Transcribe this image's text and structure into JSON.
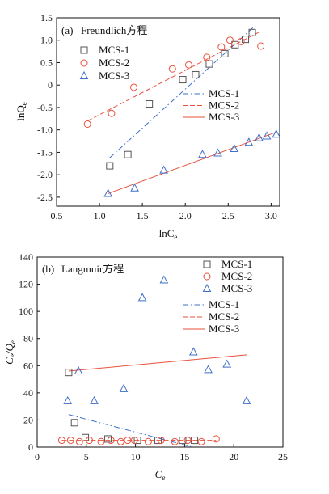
{
  "chart_data": [
    {
      "type": "scatter",
      "panel_label": "(a)",
      "title": "Freundlich方程",
      "xlabel": "lnC",
      "xlabel_sub": "e",
      "ylabel": "lnQ",
      "ylabel_sub": "e",
      "xlim": [
        0.5,
        3.1
      ],
      "ylim": [
        -2.7,
        1.5
      ],
      "xticks": [
        0.5,
        1.0,
        1.5,
        2.0,
        2.5,
        3.0
      ],
      "xtick_labels": [
        "0.5",
        "1.0",
        "1.5",
        "2.0",
        "2.5",
        "3.0"
      ],
      "yticks": [
        -2.5,
        -2.0,
        -1.5,
        -1.0,
        -0.5,
        0,
        0.5,
        1.0,
        1.5
      ],
      "ytick_labels": [
        "-2.5",
        "-2.0",
        "-1.5",
        "-1.0",
        "-0.5",
        "0",
        "0.5",
        "1.0",
        "1.5"
      ],
      "scatter_legend": [
        {
          "label": "MCS-1",
          "marker": "square",
          "color": "#555555"
        },
        {
          "label": "MCS-2",
          "marker": "circle",
          "color": "#e8503a"
        },
        {
          "label": "MCS-3",
          "marker": "triangle",
          "color": "#3f6fc8"
        }
      ],
      "line_legend": [
        {
          "label": "MCS-1",
          "dash": "dashdot",
          "color": "#3f6fc8"
        },
        {
          "label": "MCS-2",
          "dash": "dashed",
          "color": "#e8503a"
        },
        {
          "label": "MCS-3",
          "dash": "solid",
          "color": "#e8503a"
        }
      ],
      "series": [
        {
          "label": "MCS-1",
          "marker": "square",
          "color": "#555555",
          "x": [
            1.12,
            1.33,
            1.58,
            1.97,
            2.12,
            2.28,
            2.46,
            2.58,
            2.7,
            2.78
          ],
          "y": [
            -1.8,
            -1.55,
            -0.42,
            0.12,
            0.23,
            0.47,
            0.7,
            0.9,
            1.02,
            1.17
          ]
        },
        {
          "label": "MCS-2",
          "marker": "circle",
          "color": "#e8503a",
          "x": [
            0.86,
            1.14,
            1.4,
            1.85,
            2.04,
            2.25,
            2.42,
            2.52,
            2.65,
            2.88
          ],
          "y": [
            -0.87,
            -0.63,
            -0.05,
            0.36,
            0.45,
            0.62,
            0.85,
            1.0,
            0.97,
            0.87
          ]
        },
        {
          "label": "MCS-3",
          "marker": "triangle",
          "color": "#3f6fc8",
          "x": [
            1.1,
            1.41,
            1.75,
            2.2,
            2.38,
            2.57,
            2.74,
            2.86,
            2.95,
            3.06
          ],
          "y": [
            -2.42,
            -2.3,
            -1.9,
            -1.55,
            -1.52,
            -1.42,
            -1.28,
            -1.18,
            -1.14,
            -1.1
          ]
        }
      ],
      "fit_lines": [
        {
          "label": "MCS-1",
          "dash": "dashdot",
          "color": "#3f6fc8",
          "x": [
            1.12,
            2.8
          ],
          "y": [
            -1.62,
            1.3
          ]
        },
        {
          "label": "MCS-2",
          "dash": "dashed",
          "color": "#e8503a",
          "x": [
            0.86,
            2.88
          ],
          "y": [
            -0.8,
            1.2
          ]
        },
        {
          "label": "MCS-3",
          "dash": "solid",
          "color": "#e8503a",
          "x": [
            1.1,
            3.06
          ],
          "y": [
            -2.42,
            -1.05
          ]
        }
      ]
    },
    {
      "type": "scatter",
      "panel_label": "(b)",
      "title": "Langmuir方程",
      "xlabel": "C",
      "xlabel_sub": "e",
      "ylabel": "C",
      "ylabel_sub": "e",
      "ylabel_mid": "/Q",
      "ylabel_sub2": "e",
      "xlim": [
        0,
        25
      ],
      "ylim": [
        0,
        140
      ],
      "xticks": [
        0,
        5,
        10,
        15,
        20,
        25
      ],
      "xtick_labels": [
        "0",
        "5",
        "10",
        "15",
        "20",
        "25"
      ],
      "yticks": [
        0,
        20,
        40,
        60,
        80,
        100,
        120,
        140
      ],
      "ytick_labels": [
        "0",
        "20",
        "40",
        "60",
        "80",
        "100",
        "120",
        "140"
      ],
      "scatter_legend": [
        {
          "label": "MCS-1",
          "marker": "square",
          "color": "#555555"
        },
        {
          "label": "MCS-2",
          "marker": "circle",
          "color": "#e8503a"
        },
        {
          "label": "MCS-3",
          "marker": "triangle",
          "color": "#3f6fc8"
        }
      ],
      "line_legend": [
        {
          "label": "MCS-1",
          "dash": "dashdot",
          "color": "#3f6fc8"
        },
        {
          "label": "MCS-2",
          "dash": "dashed",
          "color": "#e8503a"
        },
        {
          "label": "MCS-3",
          "dash": "solid",
          "color": "#e8503a"
        }
      ],
      "series": [
        {
          "label": "MCS-1",
          "marker": "square",
          "color": "#555555",
          "x": [
            3.2,
            3.8,
            4.9,
            7.2,
            10.2,
            12.3,
            14.8,
            16.0
          ],
          "y": [
            55,
            18,
            7,
            6,
            5,
            5,
            5,
            5
          ]
        },
        {
          "label": "MCS-2",
          "marker": "circle",
          "color": "#e8503a",
          "x": [
            2.5,
            3.4,
            4.3,
            5.3,
            6.5,
            7.5,
            8.5,
            9.2,
            9.9,
            11.3,
            12.6,
            14.0,
            15.3,
            16.7,
            18.2
          ],
          "y": [
            5,
            5,
            4,
            5,
            4,
            5,
            4,
            5,
            5,
            4,
            5,
            4,
            5,
            4,
            6
          ]
        },
        {
          "label": "MCS-3",
          "marker": "triangle",
          "color": "#3f6fc8",
          "x": [
            3.1,
            4.2,
            5.8,
            8.8,
            10.7,
            12.9,
            15.9,
            17.4,
            19.3,
            21.3
          ],
          "y": [
            34,
            56,
            34,
            43,
            110,
            123,
            70,
            57,
            61,
            34
          ]
        }
      ],
      "fit_lines": [
        {
          "label": "MCS-1",
          "dash": "dashdot",
          "color": "#3f6fc8",
          "x": [
            3.2,
            15.8
          ],
          "y": [
            24,
            0
          ]
        },
        {
          "label": "MCS-2",
          "dash": "dashed",
          "color": "#e8503a",
          "x": [
            2.5,
            18.2
          ],
          "y": [
            5,
            5
          ]
        },
        {
          "label": "MCS-3",
          "dash": "solid",
          "color": "#e8503a",
          "x": [
            3.2,
            21.3
          ],
          "y": [
            56,
            68
          ]
        }
      ]
    }
  ]
}
